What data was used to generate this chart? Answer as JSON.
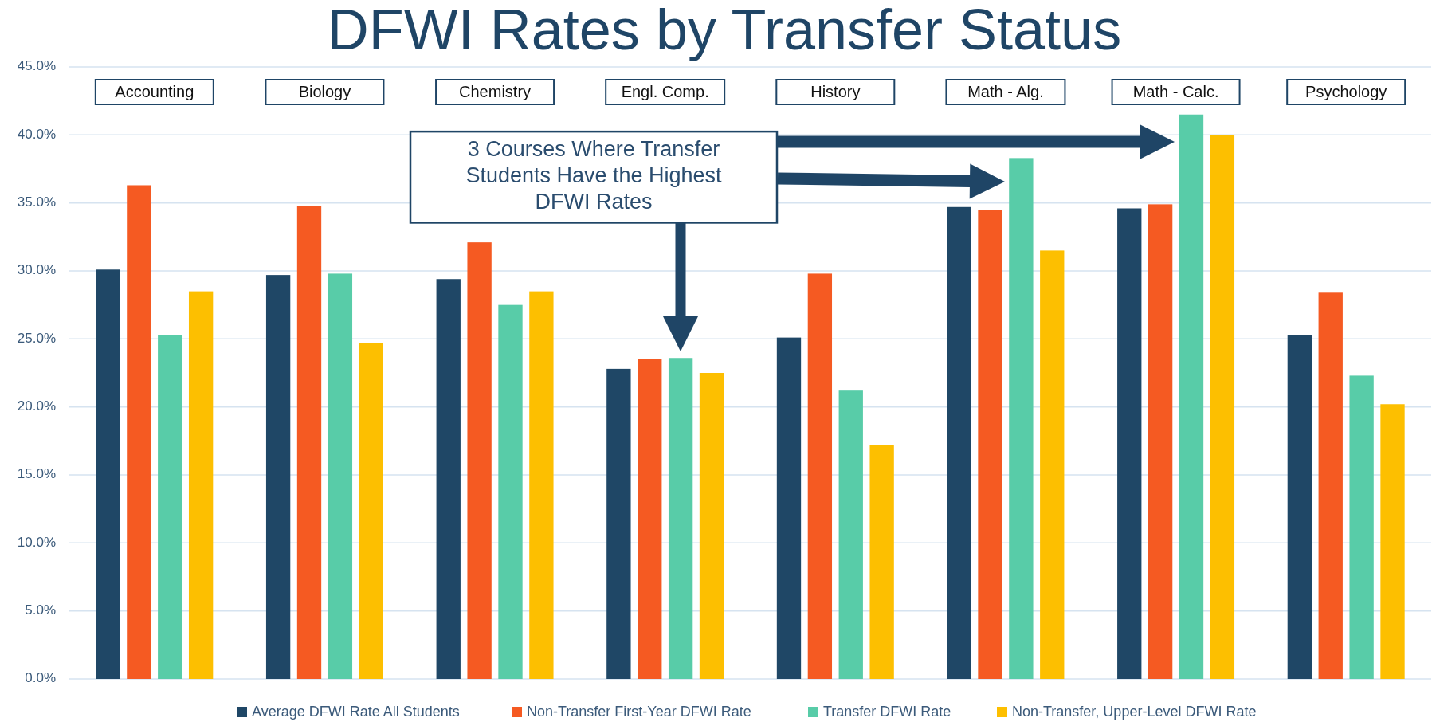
{
  "chart_data": {
    "type": "bar",
    "title": "DFWI Rates by Transfer Status",
    "categories": [
      "Accounting",
      "Biology",
      "Chemistry",
      "Engl. Comp.",
      "History",
      "Math - Alg.",
      "Math - Calc.",
      "Psychology"
    ],
    "series": [
      {
        "name": "Average DFWI Rate All Students",
        "color": "#1f4766",
        "values": [
          30.1,
          29.7,
          29.4,
          22.8,
          25.1,
          34.7,
          34.6,
          25.3
        ]
      },
      {
        "name": "Non-Transfer First-Year DFWI Rate",
        "color": "#f55a22",
        "values": [
          36.3,
          34.8,
          32.1,
          23.5,
          29.8,
          34.5,
          34.9,
          28.4
        ]
      },
      {
        "name": "Transfer DFWI Rate",
        "color": "#58cca8",
        "values": [
          25.3,
          29.8,
          27.5,
          23.6,
          21.2,
          38.3,
          41.5,
          22.3
        ]
      },
      {
        "name": "Non-Transfer, Upper-Level DFWI Rate",
        "color": "#fdbf00",
        "values": [
          28.5,
          24.7,
          28.5,
          22.5,
          17.2,
          31.5,
          40.0,
          20.2
        ]
      }
    ],
    "ylim": [
      0,
      45
    ],
    "yticks": [
      {
        "value": 0,
        "label": "0.0%"
      },
      {
        "value": 5,
        "label": "5.0%"
      },
      {
        "value": 10,
        "label": "10.0%"
      },
      {
        "value": 15,
        "label": "15.0%"
      },
      {
        "value": 20,
        "label": "20.0%"
      },
      {
        "value": 25,
        "label": "25.0%"
      },
      {
        "value": 30,
        "label": "30.0%"
      },
      {
        "value": 35,
        "label": "35.0%"
      },
      {
        "value": 40,
        "label": "40.0%"
      },
      {
        "value": 45,
        "label": "45.0%"
      }
    ],
    "grid": "y",
    "legend": "bottom",
    "annotations": [
      "3 Courses Where Transfer Students Have the Highest DFWI Rates"
    ]
  }
}
